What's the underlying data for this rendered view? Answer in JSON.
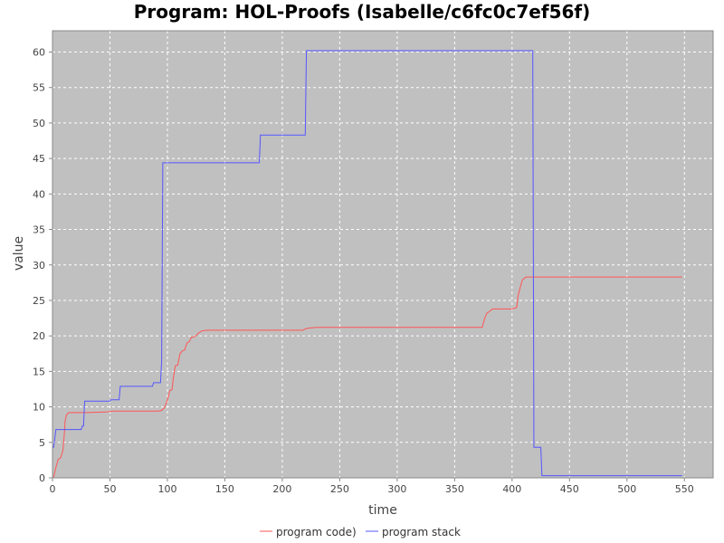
{
  "chart_data": {
    "type": "line",
    "title": "Program: HOL-Proofs (Isabelle/c6fc0c7ef56f)",
    "xlabel": "time",
    "ylabel": "value",
    "xlim": [
      0,
      575
    ],
    "ylim": [
      0,
      63
    ],
    "x_ticks": [
      0,
      50,
      100,
      150,
      200,
      250,
      300,
      350,
      400,
      450,
      500,
      550
    ],
    "y_ticks": [
      0,
      5,
      10,
      15,
      20,
      25,
      30,
      35,
      40,
      45,
      50,
      55,
      60
    ],
    "grid": true,
    "legend_position": "bottom",
    "background_color": "#c0c0c0",
    "series": [
      {
        "name": "program code)",
        "color": "#ff5555",
        "points": [
          [
            1,
            0.1
          ],
          [
            3,
            1.5
          ],
          [
            5,
            2.6
          ],
          [
            7,
            2.8
          ],
          [
            9,
            3.8
          ],
          [
            10,
            5.5
          ],
          [
            11,
            8.0
          ],
          [
            12,
            8.8
          ],
          [
            14,
            9.2
          ],
          [
            30,
            9.2
          ],
          [
            48,
            9.3
          ],
          [
            52,
            9.4
          ],
          [
            60,
            9.4
          ],
          [
            80,
            9.4
          ],
          [
            92,
            9.4
          ],
          [
            95,
            9.5
          ],
          [
            97,
            9.8
          ],
          [
            99,
            10.5
          ],
          [
            101,
            11.5
          ],
          [
            102,
            12.3
          ],
          [
            104,
            12.4
          ],
          [
            105,
            13.8
          ],
          [
            106,
            15.0
          ],
          [
            107,
            15.8
          ],
          [
            109,
            15.9
          ],
          [
            111,
            17.5
          ],
          [
            113,
            17.9
          ],
          [
            115,
            18.0
          ],
          [
            117,
            19.0
          ],
          [
            119,
            19.2
          ],
          [
            121,
            19.8
          ],
          [
            124,
            19.9
          ],
          [
            127,
            20.4
          ],
          [
            130,
            20.7
          ],
          [
            134,
            20.8
          ],
          [
            150,
            20.8
          ],
          [
            200,
            20.8
          ],
          [
            218,
            20.8
          ],
          [
            220,
            21.0
          ],
          [
            223,
            21.1
          ],
          [
            230,
            21.2
          ],
          [
            300,
            21.2
          ],
          [
            350,
            21.2
          ],
          [
            374,
            21.2
          ],
          [
            376,
            22.4
          ],
          [
            378,
            23.2
          ],
          [
            380,
            23.4
          ],
          [
            383,
            23.8
          ],
          [
            400,
            23.8
          ],
          [
            404,
            24.0
          ],
          [
            405,
            25.5
          ],
          [
            407,
            26.8
          ],
          [
            409,
            27.9
          ],
          [
            412,
            28.3
          ],
          [
            450,
            28.3
          ],
          [
            500,
            28.3
          ],
          [
            548,
            28.3
          ]
        ]
      },
      {
        "name": "program stack",
        "color": "#5555ff",
        "points": [
          [
            0,
            4.3
          ],
          [
            1,
            4.3
          ],
          [
            3,
            6.8
          ],
          [
            25,
            6.8
          ],
          [
            26,
            7.3
          ],
          [
            27,
            7.3
          ],
          [
            28,
            10.8
          ],
          [
            50,
            10.8
          ],
          [
            51,
            11.0
          ],
          [
            58,
            11.0
          ],
          [
            59,
            12.9
          ],
          [
            87,
            12.9
          ],
          [
            88,
            13.4
          ],
          [
            94,
            13.4
          ],
          [
            95,
            16.5
          ],
          [
            96,
            44.4
          ],
          [
            180,
            44.4
          ],
          [
            181,
            48.3
          ],
          [
            220,
            48.3
          ],
          [
            221,
            60.2
          ],
          [
            418,
            60.2
          ],
          [
            419,
            4.3
          ],
          [
            425,
            4.3
          ],
          [
            426,
            0.3
          ],
          [
            480,
            0.3
          ],
          [
            548,
            0.3
          ]
        ]
      }
    ]
  }
}
